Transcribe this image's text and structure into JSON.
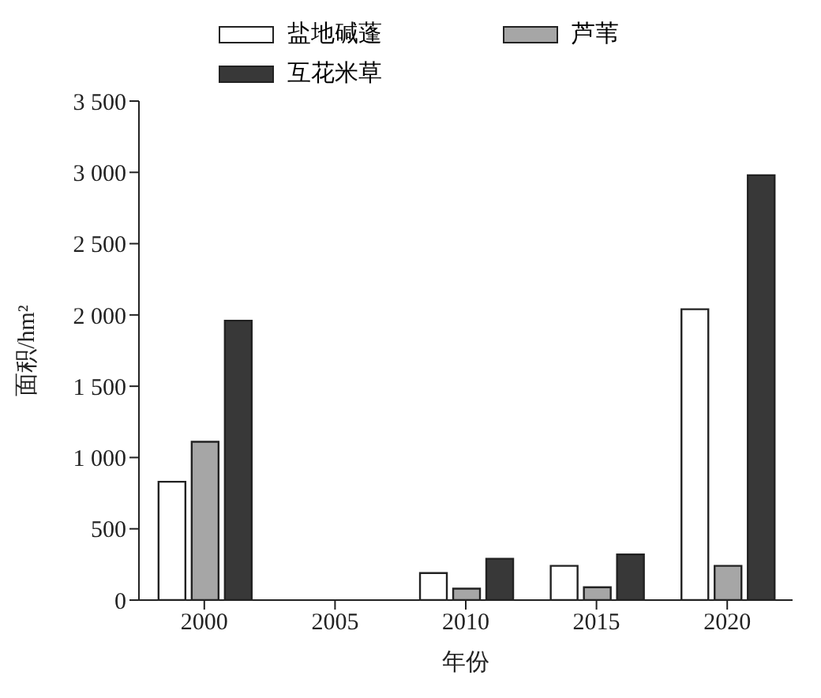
{
  "chart_data": {
    "type": "bar",
    "xlabel": "年份",
    "ylabel": "面积/hm²",
    "categories": [
      "2000",
      "2005",
      "2010",
      "2015",
      "2020"
    ],
    "series": [
      {
        "name": "盐地碱蓬",
        "color": "#ffffff",
        "values": [
          830,
          0,
          190,
          240,
          2040
        ]
      },
      {
        "name": "芦苇",
        "color": "#a6a6a6",
        "values": [
          1110,
          0,
          80,
          90,
          240
        ]
      },
      {
        "name": "互花米草",
        "color": "#383838",
        "values": [
          1960,
          0,
          290,
          320,
          2980
        ]
      }
    ],
    "ylim": [
      0,
      3500
    ],
    "yticks": [
      0,
      500,
      {
        "value": 1000,
        "label": "1 000"
      },
      {
        "value": 1500,
        "label": "1 500"
      },
      {
        "value": 2000,
        "label": "2 000"
      },
      {
        "value": 2500,
        "label": "2 500"
      },
      {
        "value": 3000,
        "label": "3 000"
      },
      {
        "value": 3500,
        "label": "3 500"
      }
    ],
    "grid": false,
    "legend": "top left"
  }
}
